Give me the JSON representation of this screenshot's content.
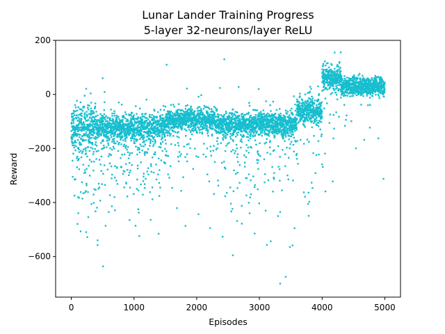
{
  "chart_data": {
    "type": "scatter",
    "title": "Lunar Lander Training Progress",
    "subtitle": "5-layer 32-neurons/layer ReLU",
    "xlabel": "Episodes",
    "ylabel": "Reward",
    "xlim": [
      -250,
      5250
    ],
    "ylim": [
      -750,
      200
    ],
    "xticks": [
      0,
      1000,
      2000,
      3000,
      4000,
      5000
    ],
    "yticks": [
      -600,
      -400,
      -200,
      0,
      200
    ],
    "xtick_labels": [
      "0",
      "1000",
      "2000",
      "3000",
      "4000",
      "5000"
    ],
    "ytick_labels": [
      "−600",
      "−400",
      "−200",
      "0",
      "200"
    ],
    "grid": false,
    "legend": "none",
    "marker_color": "#17becf",
    "episodes": 5000,
    "trend_by_phase": [
      {
        "x_range": [
          0,
          400
        ],
        "median_reward": -120,
        "spread": 70,
        "outlier_fraction": 0.22
      },
      {
        "x_range": [
          400,
          1500
        ],
        "median_reward": -125,
        "spread": 45,
        "outlier_fraction": 0.18
      },
      {
        "x_range": [
          1500,
          2300
        ],
        "median_reward": -95,
        "spread": 35,
        "outlier_fraction": 0.12
      },
      {
        "x_range": [
          2300,
          3600
        ],
        "median_reward": -110,
        "spread": 40,
        "outlier_fraction": 0.15
      },
      {
        "x_range": [
          3600,
          4000
        ],
        "median_reward": -60,
        "spread": 40,
        "outlier_fraction": 0.08
      },
      {
        "x_range": [
          4000,
          4300
        ],
        "median_reward": 60,
        "spread": 40,
        "outlier_fraction": 0.05
      },
      {
        "x_range": [
          4300,
          5000
        ],
        "median_reward": 30,
        "spread": 30,
        "outlier_fraction": 0.03
      }
    ],
    "notable_points": [
      {
        "x": 3330,
        "y": -700
      },
      {
        "x": 3420,
        "y": -675
      },
      {
        "x": 3120,
        "y": -557
      },
      {
        "x": 420,
        "y": -540
      },
      {
        "x": 420,
        "y": -557
      },
      {
        "x": 3330,
        "y": -435
      },
      {
        "x": 3560,
        "y": -495
      },
      {
        "x": 1520,
        "y": 110
      },
      {
        "x": 2440,
        "y": 130
      },
      {
        "x": 4200,
        "y": 155
      },
      {
        "x": 4200,
        "y": 95
      },
      {
        "x": 500,
        "y": 60
      }
    ]
  }
}
